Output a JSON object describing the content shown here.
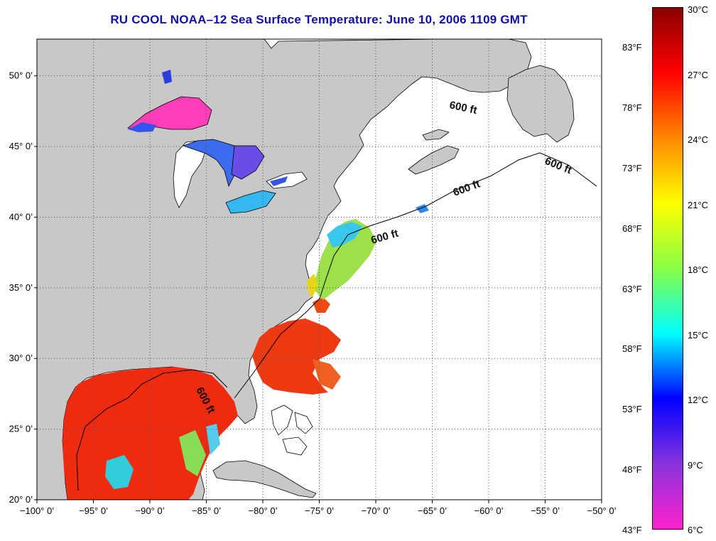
{
  "title": "RU COOL  NOAA–12  Sea Surface Temperature:  June 10, 2006 1109 GMT",
  "map": {
    "lon_labels": [
      "−100° 0’",
      "−95° 0’",
      "−90° 0’",
      "−85° 0’",
      "−80° 0’",
      "−75° 0’",
      "−70° 0’",
      "−65° 0’",
      "−60° 0’",
      "−55° 0’",
      "−50° 0’"
    ],
    "lat_labels": [
      "50° 0’",
      "45° 0’",
      "40° 0’",
      "35° 0’",
      "30° 0’",
      "25° 0’",
      "20° 0’"
    ],
    "contour_labels": [
      "600 ft",
      "600 ft",
      "600 ft",
      "600 ft",
      "600 ft"
    ],
    "colors": {
      "land": "#c8c8c8",
      "ocean_nodata": "#ffffff",
      "gulf_sst": "#ee2a10"
    }
  },
  "colorbar": {
    "celsius": [
      "30°C",
      "27°C",
      "24°C",
      "21°C",
      "18°C",
      "15°C",
      "12°C",
      "9°C",
      "6°C"
    ],
    "fahrenheit": [
      "83°F",
      "78°F",
      "73°F",
      "68°F",
      "63°F",
      "58°F",
      "53°F",
      "48°F",
      "43°F"
    ],
    "gradient": [
      "#8b0000",
      "#ff0000",
      "#ff8800",
      "#ffff00",
      "#88ff44",
      "#00ffff",
      "#0000ff",
      "#8833dd",
      "#ff22cc"
    ]
  }
}
